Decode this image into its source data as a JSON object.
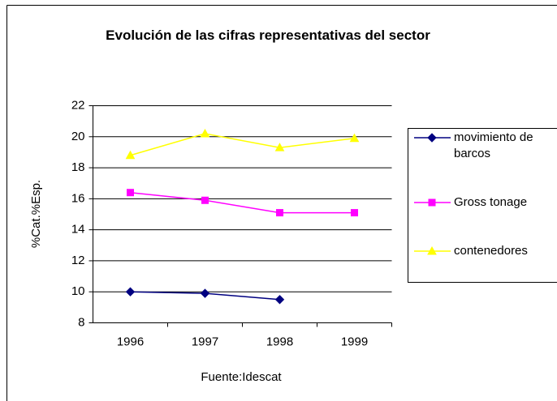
{
  "chart_data": {
    "type": "line",
    "title": "Evolución de las cifras representativas del sector",
    "y_label": "%Cat.%Esp.",
    "x_label": "Fuente:Idescat",
    "categories": [
      "1996",
      "1997",
      "1998",
      "1999"
    ],
    "series": [
      {
        "name": "movimiento de barcos",
        "color": "#000080",
        "marker": "diamond",
        "values": [
          10.0,
          9.9,
          9.5,
          null
        ]
      },
      {
        "name": "Gross tonage",
        "color": "#ff00ff",
        "marker": "square",
        "values": [
          16.4,
          15.9,
          15.1,
          15.1
        ]
      },
      {
        "name": "contenedores",
        "color": "#ffff00",
        "marker": "triangle",
        "values": [
          18.8,
          20.2,
          19.3,
          19.9
        ]
      }
    ],
    "ylim": [
      8,
      22
    ],
    "yticks": [
      8,
      10,
      12,
      14,
      16,
      18,
      20,
      22
    ],
    "grid": true,
    "legend": "right"
  }
}
